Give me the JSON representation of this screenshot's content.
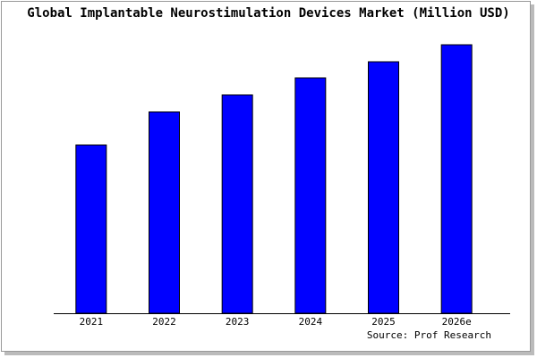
{
  "chart_data": {
    "type": "bar",
    "title": "Global Implantable Neurostimulation Devices Market (Million USD)",
    "source": "Source: Prof Research",
    "categories": [
      "2021",
      "2022",
      "2023",
      "2024",
      "2025",
      "2026e"
    ],
    "values": [
      188,
      225,
      244,
      263,
      281,
      300
    ],
    "color": "#0000ff",
    "ylim": [
      0,
      300
    ]
  }
}
